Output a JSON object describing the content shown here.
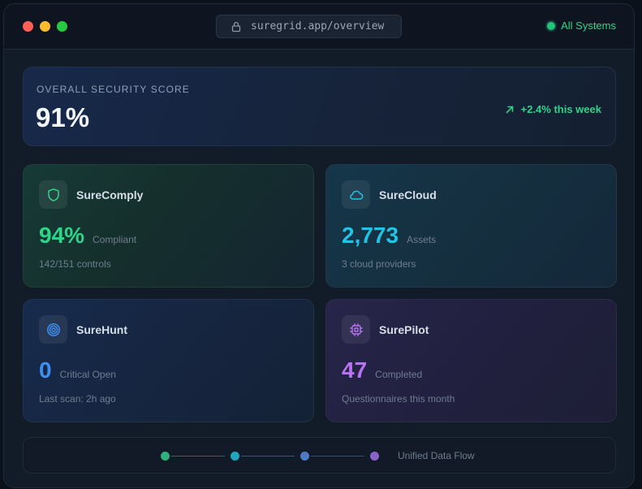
{
  "window": {
    "url": "suregrid.app/overview",
    "status": "All Systems"
  },
  "score": {
    "label": "OVERALL SECURITY SCORE",
    "value": "91%",
    "trend": "+2.4% this week"
  },
  "cards": [
    {
      "name": "SureComply",
      "value": "94%",
      "unit": "Compliant",
      "sub": "142/151 controls",
      "icon": "shield-icon",
      "color": "#2fd389"
    },
    {
      "name": "SureCloud",
      "value": "2,773",
      "unit": "Assets",
      "sub": "3 cloud providers",
      "icon": "cloud-icon",
      "color": "#22c4e6"
    },
    {
      "name": "SureHunt",
      "value": "0",
      "unit": "Critical Open",
      "sub": "Last scan: 2h ago",
      "icon": "target-icon",
      "color": "#3f8ff3"
    },
    {
      "name": "SurePilot",
      "value": "47",
      "unit": "Completed",
      "sub": "Questionnaires this month",
      "icon": "chip-icon",
      "color": "#b873f4"
    }
  ],
  "flow": {
    "label": "Unified Data Flow",
    "node_colors": [
      "#2fb07c",
      "#22a6c0",
      "#4d7cc2",
      "#8a62c8"
    ]
  }
}
